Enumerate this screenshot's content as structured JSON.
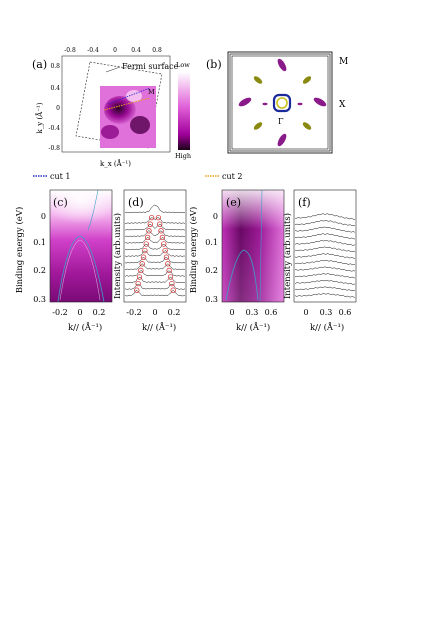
{
  "panels": {
    "a": {
      "tag": "(a)",
      "fermi_label": "Fermi surface",
      "m_label": "M",
      "top_ticks": [
        "-0.8",
        "-0.4",
        "0",
        "0.4",
        "0.8"
      ],
      "left_ticks": [
        "0.8",
        "0.4",
        "0",
        "-0.4",
        "-0.8"
      ],
      "y_label": "k_y (Å⁻¹)",
      "x_label": "k_x (Å⁻¹)",
      "colorbar_low": "Low",
      "colorbar_high": "High",
      "colors": {
        "high": "#1a0016",
        "mid": "#c000b8",
        "low": "#ffffff"
      }
    },
    "b": {
      "tag": "(b)",
      "m_label": "M",
      "x_label": "X",
      "gamma_label": "Γ",
      "colors": {
        "purple": "#8a1a8a",
        "olive": "#8a8a12",
        "blue": "#1a2a9a"
      }
    },
    "legend": {
      "cut1": "cut 1",
      "cut2": "cut 2",
      "cut1_color": "#2a2acc",
      "cut2_color": "#e8a020"
    },
    "c": {
      "tag": "(c)",
      "y_label": "Binding energy (eV)",
      "y_ticks": [
        "0",
        "0.1",
        "0.2",
        "0.3"
      ],
      "x_ticks": [
        "-0.2",
        "0",
        "0.2"
      ],
      "x_label": "k// (Å⁻¹)"
    },
    "d": {
      "tag": "(d)",
      "y_label": "Intensity (arb.units)",
      "x_ticks": [
        "-0.2",
        "0",
        "0.2"
      ],
      "x_label": "k// (Å⁻¹)"
    },
    "e": {
      "tag": "(e)",
      "y_label": "Binding energy (eV)",
      "y_ticks": [
        "0",
        "0.1",
        "0.2",
        "0.3"
      ],
      "x_ticks": [
        "0",
        "0.3",
        "0.6"
      ],
      "x_label": "k// (Å⁻¹)"
    },
    "f": {
      "tag": "(f)",
      "y_label": "Intensity (arb.units)",
      "x_ticks": [
        "0",
        "0.3",
        "0.6"
      ],
      "x_label": "k// (Å⁻¹)"
    }
  }
}
